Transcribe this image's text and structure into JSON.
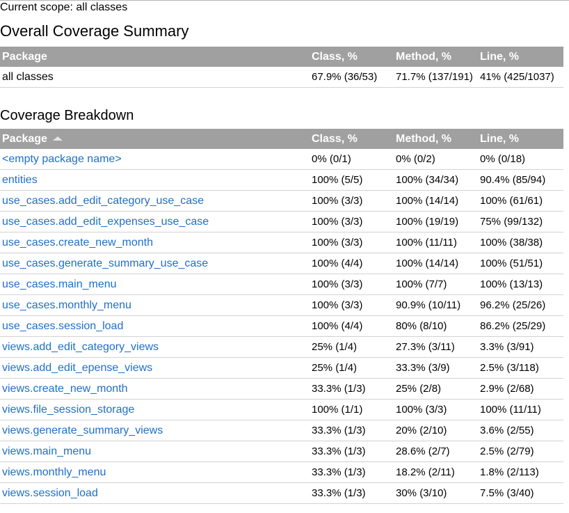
{
  "scope": {
    "text": "Current scope: all classes"
  },
  "overall": {
    "title": "Overall Coverage Summary",
    "headers": [
      "Package",
      "Class, %",
      "Method, %",
      "Line, %"
    ],
    "row": {
      "package": "all classes",
      "class": "67.9% (36/53)",
      "method": "71.7% (137/191)",
      "line": "41% (425/1037)"
    }
  },
  "breakdown": {
    "title": "Coverage Breakdown",
    "headers": [
      "Package",
      "Class, %",
      "Method, %",
      "Line, %"
    ],
    "sort_icon": "sort-ascending-icon",
    "rows": [
      {
        "package": "<empty package name>",
        "class": "0% (0/1)",
        "method": "0% (0/2)",
        "line": "0% (0/18)"
      },
      {
        "package": "entities",
        "class": "100% (5/5)",
        "method": "100% (34/34)",
        "line": "90.4% (85/94)"
      },
      {
        "package": "use_cases.add_edit_category_use_case",
        "class": "100% (3/3)",
        "method": "100% (14/14)",
        "line": "100% (61/61)"
      },
      {
        "package": "use_cases.add_edit_expenses_use_case",
        "class": "100% (3/3)",
        "method": "100% (19/19)",
        "line": "75% (99/132)"
      },
      {
        "package": "use_cases.create_new_month",
        "class": "100% (3/3)",
        "method": "100% (11/11)",
        "line": "100% (38/38)"
      },
      {
        "package": "use_cases.generate_summary_use_case",
        "class": "100% (4/4)",
        "method": "100% (14/14)",
        "line": "100% (51/51)"
      },
      {
        "package": "use_cases.main_menu",
        "class": "100% (3/3)",
        "method": "100% (7/7)",
        "line": "100% (13/13)"
      },
      {
        "package": "use_cases.monthly_menu",
        "class": "100% (3/3)",
        "method": "90.9% (10/11)",
        "line": "96.2% (25/26)"
      },
      {
        "package": "use_cases.session_load",
        "class": "100% (4/4)",
        "method": "80% (8/10)",
        "line": "86.2% (25/29)"
      },
      {
        "package": "views.add_edit_category_views",
        "class": "25% (1/4)",
        "method": "27.3% (3/11)",
        "line": "3.3% (3/91)"
      },
      {
        "package": "views.add_edit_epense_views",
        "class": "25% (1/4)",
        "method": "33.3% (3/9)",
        "line": "2.5% (3/118)"
      },
      {
        "package": "views.create_new_month",
        "class": "33.3% (1/3)",
        "method": "25% (2/8)",
        "line": "2.9% (2/68)"
      },
      {
        "package": "views.file_session_storage",
        "class": "100% (1/1)",
        "method": "100% (3/3)",
        "line": "100% (11/11)"
      },
      {
        "package": "views.generate_summary_views",
        "class": "33.3% (1/3)",
        "method": "20% (2/10)",
        "line": "3.6% (2/55)"
      },
      {
        "package": "views.main_menu",
        "class": "33.3% (1/3)",
        "method": "28.6% (2/7)",
        "line": "2.5% (2/79)"
      },
      {
        "package": "views.monthly_menu",
        "class": "33.3% (1/3)",
        "method": "18.2% (2/11)",
        "line": "1.8% (2/113)"
      },
      {
        "package": "views.session_load",
        "class": "33.3% (1/3)",
        "method": "30% (3/10)",
        "line": "7.5% (3/40)"
      }
    ]
  },
  "colors": {
    "header_bg": "#a0a0a0",
    "header_text": "#ffffff",
    "link": "#1e6fc8",
    "row_border": "#d2d2d2"
  }
}
